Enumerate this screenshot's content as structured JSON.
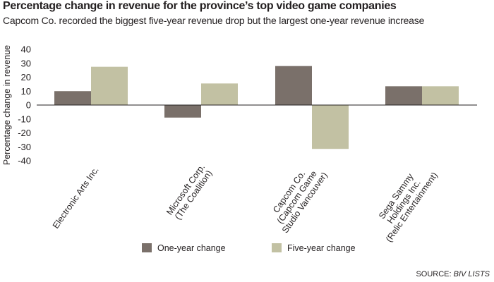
{
  "title": "Percentage change in revenue for the province’s top video game companies",
  "subtitle": "Capcom Co. recorded the biggest five-year revenue drop but the largest one-year revenue increase",
  "source": {
    "prefix": "SOURCE: ",
    "name": "BIV LISTS"
  },
  "chart_data": {
    "type": "bar",
    "title": "Percentage change in revenue for the province’s top video game companies",
    "subtitle": "Capcom Co. recorded the biggest five-year revenue drop but the largest one-year revenue increase",
    "xlabel": "",
    "ylabel": "Percentage change in revenue",
    "ylim": [
      -40,
      40
    ],
    "yticks": [
      40,
      30,
      20,
      10,
      0,
      -10,
      -20,
      -30,
      -40
    ],
    "grid": false,
    "legend": "bottom",
    "categories": [
      [
        "Electronic Arts Inc."
      ],
      [
        "Microsoft Corp.",
        "(The Coalition)"
      ],
      [
        "Capcom Co.",
        "(Capcom Game",
        "Studio Vancouver)"
      ],
      [
        "Sega Sammy",
        "Holdings Inc.",
        "(Relic Entertainment)"
      ]
    ],
    "series": [
      {
        "name": "One-year change",
        "color": "#7a706a",
        "values": [
          10,
          -9,
          28,
          13.5
        ]
      },
      {
        "name": "Five-year change",
        "color": "#c2c1a3",
        "values": [
          27.5,
          15.5,
          -31.5,
          13.5
        ]
      }
    ]
  }
}
